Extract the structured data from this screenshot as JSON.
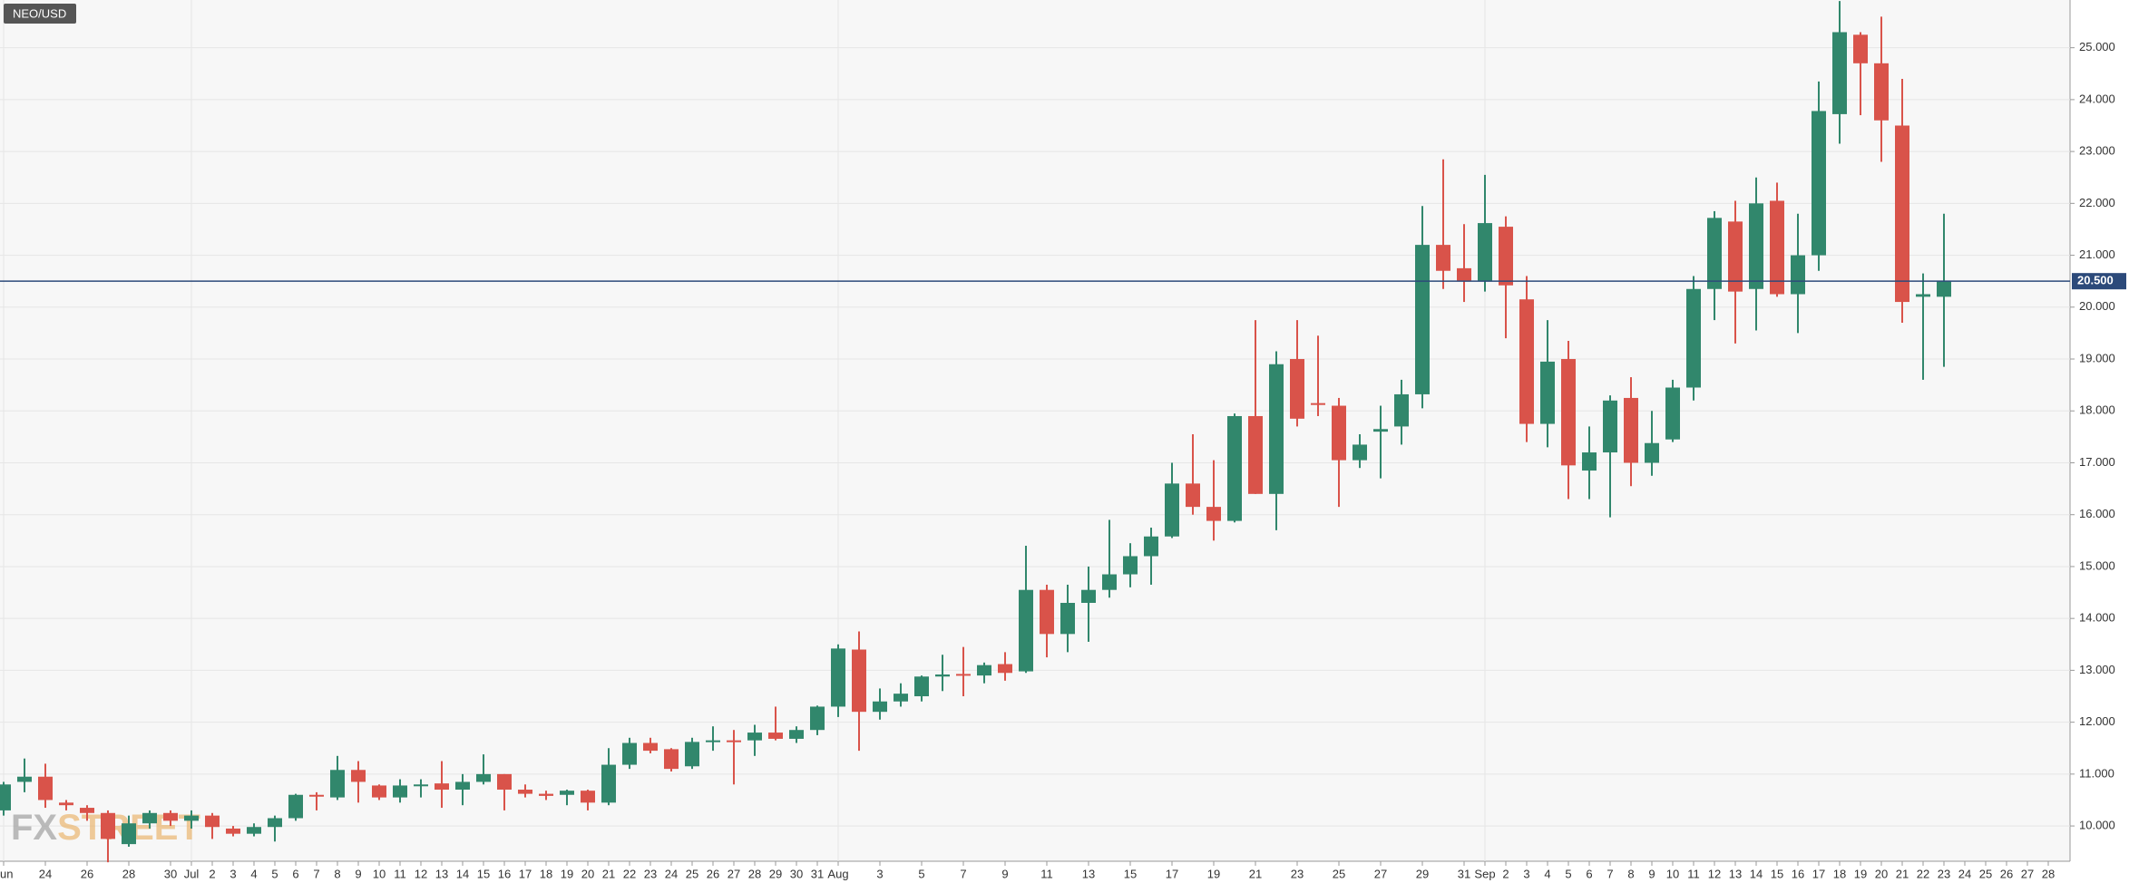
{
  "chart_data": {
    "type": "candlestick",
    "title": "NEO/USD",
    "watermark": {
      "left": "FX",
      "right": "STREET"
    },
    "categories": [
      "Jun",
      null,
      "24",
      null,
      "26",
      null,
      "28",
      null,
      "30",
      "Jul",
      "2",
      "3",
      "4",
      "5",
      "6",
      "7",
      "8",
      "9",
      "10",
      "11",
      "12",
      "13",
      "14",
      "15",
      "16",
      "17",
      "18",
      "19",
      "20",
      "21",
      "22",
      "23",
      "24",
      "25",
      "26",
      "27",
      "28",
      "29",
      "30",
      "31",
      "Aug",
      null,
      "3",
      null,
      "5",
      null,
      "7",
      null,
      "9",
      null,
      "11",
      null,
      "13",
      null,
      "15",
      null,
      "17",
      null,
      "19",
      null,
      "21",
      null,
      "23",
      null,
      "25",
      null,
      "27",
      null,
      "29",
      null,
      "31",
      "Sep",
      "2",
      "3",
      "4",
      "5",
      "6",
      "7",
      "8",
      "9",
      "10",
      "11",
      "12",
      "13",
      "14",
      "15",
      "16",
      "17",
      "18",
      "19",
      "20",
      "21",
      "22",
      "23",
      "24",
      "25",
      "26",
      "27",
      "28"
    ],
    "up_color": "#31876c",
    "down_color": "#d9534a",
    "open": [
      10.3,
      10.85,
      10.95,
      10.45,
      10.35,
      10.25,
      9.65,
      10.05,
      10.25,
      10.1,
      10.2,
      9.95,
      9.85,
      9.98,
      10.15,
      10.6,
      10.55,
      11.08,
      10.78,
      10.55,
      10.78,
      10.82,
      10.7,
      10.85,
      11.0,
      10.7,
      10.62,
      10.6,
      10.68,
      10.45,
      11.18,
      11.6,
      11.48,
      11.15,
      11.62,
      11.65,
      11.65,
      11.8,
      11.68,
      11.85,
      12.3,
      13.4,
      12.2,
      12.4,
      12.5,
      12.88,
      12.93,
      12.9,
      13.12,
      12.98,
      14.55,
      13.7,
      14.3,
      14.55,
      14.85,
      15.2,
      15.58,
      16.6,
      16.15,
      15.88,
      17.9,
      16.4,
      19.0,
      18.15,
      18.1,
      17.05,
      17.6,
      17.7,
      18.32,
      21.2,
      20.75,
      20.5,
      21.55,
      20.15,
      17.75,
      19.0,
      16.85,
      17.2,
      18.25,
      17.0,
      17.45,
      18.45,
      20.35,
      21.65,
      20.35,
      22.05,
      20.25,
      21.0,
      23.72,
      25.25,
      24.7,
      23.5,
      20.2,
      20.2,
      null,
      null,
      null,
      null,
      null
    ],
    "high": [
      10.85,
      11.3,
      11.2,
      10.5,
      10.4,
      10.3,
      10.2,
      10.3,
      10.3,
      10.3,
      10.25,
      10.0,
      10.05,
      10.2,
      10.62,
      10.65,
      11.35,
      11.25,
      10.8,
      10.9,
      10.9,
      11.25,
      11.0,
      11.38,
      11.0,
      10.8,
      10.68,
      10.7,
      10.7,
      11.5,
      11.7,
      11.7,
      11.5,
      11.7,
      11.92,
      11.85,
      11.95,
      12.3,
      11.92,
      12.32,
      13.5,
      13.75,
      12.65,
      12.75,
      12.9,
      13.3,
      13.45,
      13.15,
      13.35,
      15.4,
      14.65,
      14.65,
      15.0,
      15.9,
      15.45,
      15.75,
      17.0,
      17.55,
      17.05,
      17.95,
      19.75,
      19.15,
      19.75,
      19.45,
      18.25,
      17.55,
      18.1,
      18.6,
      21.95,
      22.85,
      21.6,
      22.55,
      21.75,
      20.6,
      19.75,
      19.35,
      17.7,
      18.3,
      18.65,
      18.0,
      18.6,
      20.6,
      21.85,
      22.05,
      22.5,
      22.4,
      21.8,
      24.35,
      25.9,
      25.3,
      25.6,
      24.4,
      20.65,
      21.8,
      null,
      null,
      null,
      null,
      null
    ],
    "low": [
      10.2,
      10.65,
      10.35,
      10.3,
      10.1,
      9.3,
      9.6,
      9.95,
      10.0,
      9.95,
      9.75,
      9.8,
      9.8,
      9.7,
      10.1,
      10.3,
      10.5,
      10.45,
      10.5,
      10.45,
      10.55,
      10.35,
      10.4,
      10.8,
      10.3,
      10.55,
      10.5,
      10.4,
      10.3,
      10.4,
      11.1,
      11.4,
      11.05,
      11.1,
      11.45,
      10.8,
      11.35,
      11.65,
      11.6,
      11.75,
      12.1,
      11.45,
      12.05,
      12.3,
      12.4,
      12.6,
      12.5,
      12.75,
      12.8,
      12.95,
      13.25,
      13.35,
      13.55,
      14.4,
      14.6,
      14.65,
      15.55,
      16.0,
      15.5,
      15.85,
      16.4,
      15.7,
      17.7,
      17.9,
      16.15,
      16.9,
      16.7,
      17.35,
      18.05,
      20.35,
      20.1,
      20.3,
      19.4,
      17.4,
      17.3,
      16.3,
      16.3,
      15.95,
      16.55,
      16.75,
      17.4,
      18.2,
      19.75,
      19.3,
      19.55,
      20.2,
      19.5,
      20.7,
      23.15,
      23.7,
      22.8,
      19.7,
      18.6,
      18.85,
      null,
      null,
      null,
      null,
      null
    ],
    "close": [
      10.8,
      10.95,
      10.5,
      10.4,
      10.25,
      9.75,
      10.05,
      10.25,
      10.1,
      10.2,
      9.98,
      9.85,
      9.98,
      10.15,
      10.6,
      10.57,
      11.08,
      10.85,
      10.55,
      10.78,
      10.8,
      10.7,
      10.85,
      11.0,
      10.7,
      10.62,
      10.58,
      10.68,
      10.45,
      11.18,
      11.6,
      11.45,
      11.1,
      11.62,
      11.65,
      11.62,
      11.8,
      11.68,
      11.85,
      12.3,
      13.42,
      12.2,
      12.4,
      12.55,
      12.88,
      12.92,
      12.9,
      13.1,
      12.95,
      14.55,
      13.7,
      14.3,
      14.55,
      14.85,
      15.2,
      15.58,
      16.6,
      16.15,
      15.88,
      17.9,
      16.4,
      18.9,
      17.85,
      18.12,
      17.05,
      17.35,
      17.65,
      18.32,
      21.2,
      20.7,
      20.5,
      21.62,
      20.42,
      17.75,
      18.95,
      16.95,
      17.2,
      18.2,
      17.0,
      17.38,
      18.45,
      20.35,
      21.72,
      20.3,
      22.0,
      20.25,
      21.0,
      23.78,
      25.3,
      24.7,
      23.6,
      20.1,
      20.25,
      20.5,
      null,
      null,
      null,
      null,
      null
    ],
    "ylim": [
      9.32,
      25.92
    ],
    "yticks": [
      {
        "value": 10,
        "label": "10.000"
      },
      {
        "value": 11,
        "label": "11.000"
      },
      {
        "value": 12,
        "label": "12.000"
      },
      {
        "value": 13,
        "label": "13.000"
      },
      {
        "value": 14,
        "label": "14.000"
      },
      {
        "value": 15,
        "label": "15.000"
      },
      {
        "value": 16,
        "label": "16.000"
      },
      {
        "value": 17,
        "label": "17.000"
      },
      {
        "value": 18,
        "label": "18.000"
      },
      {
        "value": 19,
        "label": "19.000"
      },
      {
        "value": 20,
        "label": "20.000"
      },
      {
        "value": 21,
        "label": "21.000"
      },
      {
        "value": 22,
        "label": "22.000"
      },
      {
        "value": 23,
        "label": "23.000"
      },
      {
        "value": 24,
        "label": "24.000"
      },
      {
        "value": 25,
        "label": "25.000"
      }
    ],
    "current_price": {
      "value": 20.5,
      "label": "20.500"
    },
    "current_price_color": "#2c4a7a",
    "grid": true
  }
}
